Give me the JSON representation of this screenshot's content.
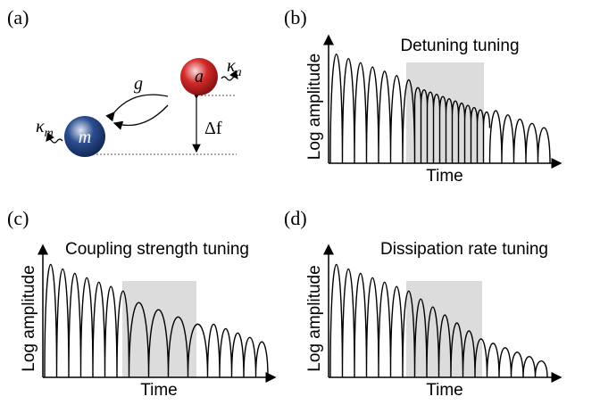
{
  "panel_a": {
    "label": "(a)",
    "node_m": "m",
    "node_a": "a",
    "coupling": "g",
    "kappa_m": {
      "symbol": "κ",
      "subscript": "m"
    },
    "kappa_a": {
      "symbol": "κ",
      "subscript": "a"
    },
    "detuning": "Δf"
  },
  "panel_b": {
    "label": "(b)",
    "title": "Detuning tuning",
    "ylabel": "Log amplitude",
    "xlabel": "Time"
  },
  "panel_c": {
    "label": "(c)",
    "title": "Coupling strength tuning",
    "ylabel": "Log amplitude",
    "xlabel": "Time"
  },
  "panel_d": {
    "label": "(d)",
    "title": "Dissipation rate tuning",
    "ylabel": "Log amplitude",
    "xlabel": "Time"
  }
}
